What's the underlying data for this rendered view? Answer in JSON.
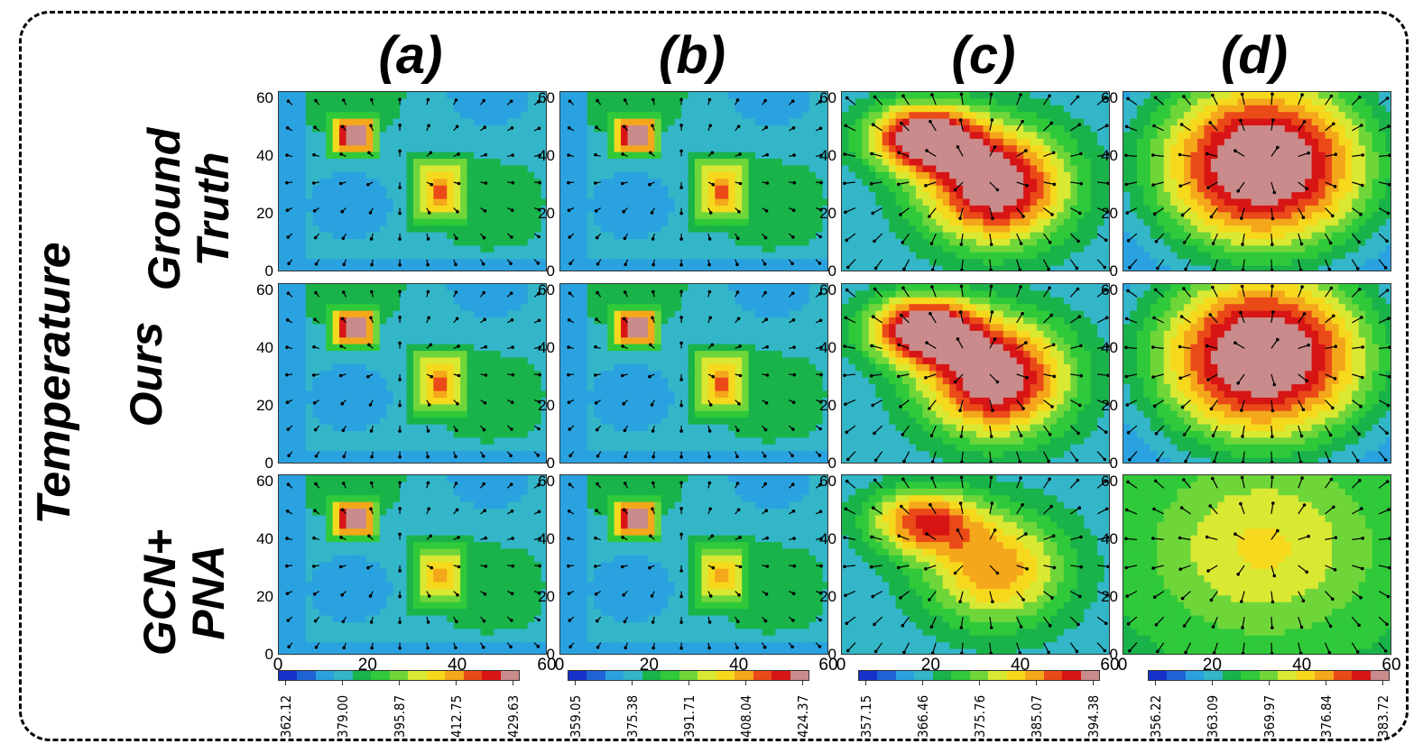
{
  "column_titles": [
    "(a)",
    "(b)",
    "(c)",
    "(d)"
  ],
  "side_label": "Temperature",
  "row_labels": [
    "Ground Truth",
    "Ours",
    "GCN+ PNA"
  ],
  "axis": {
    "y_ticks": [
      "60",
      "40",
      "20",
      "0"
    ],
    "x_ticks": [
      "0",
      "20",
      "40",
      "60"
    ]
  },
  "colorbars": [
    {
      "ticks": [
        "362.12",
        "379.00",
        "395.87",
        "412.75",
        "429.63"
      ]
    },
    {
      "ticks": [
        "359.05",
        "375.38",
        "391.71",
        "408.04",
        "424.37"
      ]
    },
    {
      "ticks": [
        "357.15",
        "366.46",
        "375.76",
        "385.07",
        "394.38"
      ]
    },
    {
      "ticks": [
        "356.22",
        "363.09",
        "369.97",
        "376.84",
        "383.72"
      ]
    }
  ],
  "palette": [
    "#1732c8",
    "#1f64d6",
    "#2aa2e0",
    "#33b6c8",
    "#19b34a",
    "#2fc93a",
    "#6fd63a",
    "#d9e832",
    "#f6d81d",
    "#f4a71a",
    "#ea4a18",
    "#d81515",
    "#c98b8b"
  ]
}
